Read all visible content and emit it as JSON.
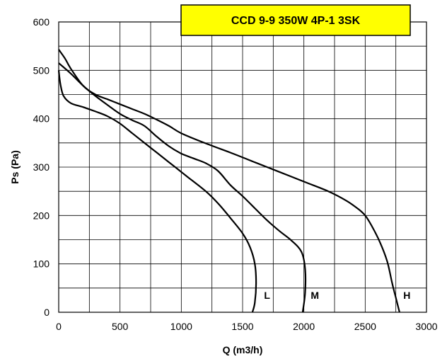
{
  "chart_data": {
    "type": "line",
    "title": "CCD 9-9 350W 4P-1 3SK",
    "title_box_color": "#ffff00",
    "xlabel": "Q (m3/h)",
    "ylabel": "Ps (Pa)",
    "xlim": [
      0,
      3000
    ],
    "ylim": [
      0,
      600
    ],
    "x_ticks": [
      0,
      500,
      1000,
      1500,
      2000,
      2500,
      3000
    ],
    "y_ticks": [
      0,
      100,
      200,
      300,
      400,
      500,
      600
    ],
    "x_tick_labels": [
      "0",
      "500",
      "1000",
      "1500",
      "2000",
      "2500",
      "3000"
    ],
    "y_tick_labels": [
      "0",
      "100",
      "200",
      "300",
      "400",
      "500",
      "600"
    ],
    "grid": true,
    "grid_x_step": 250,
    "grid_y_step": 50,
    "legend": "none",
    "series": [
      {
        "name": "L",
        "label_at": [
          1700,
          35
        ],
        "points": [
          [
            0,
            500
          ],
          [
            15,
            470
          ],
          [
            40,
            447
          ],
          [
            100,
            432
          ],
          [
            200,
            424
          ],
          [
            300,
            415
          ],
          [
            400,
            405
          ],
          [
            500,
            390
          ],
          [
            600,
            370
          ],
          [
            750,
            340
          ],
          [
            900,
            310
          ],
          [
            1050,
            280
          ],
          [
            1200,
            250
          ],
          [
            1300,
            225
          ],
          [
            1400,
            195
          ],
          [
            1500,
            163
          ],
          [
            1560,
            135
          ],
          [
            1600,
            100
          ],
          [
            1610,
            60
          ],
          [
            1600,
            20
          ],
          [
            1580,
            0
          ]
        ]
      },
      {
        "name": "M",
        "label_at": [
          2090,
          35
        ],
        "points": [
          [
            0,
            515
          ],
          [
            100,
            493
          ],
          [
            200,
            468
          ],
          [
            300,
            447
          ],
          [
            400,
            428
          ],
          [
            500,
            410
          ],
          [
            600,
            397
          ],
          [
            700,
            385
          ],
          [
            800,
            363
          ],
          [
            900,
            343
          ],
          [
            1000,
            328
          ],
          [
            1100,
            318
          ],
          [
            1200,
            308
          ],
          [
            1300,
            292
          ],
          [
            1400,
            263
          ],
          [
            1500,
            240
          ],
          [
            1600,
            215
          ],
          [
            1700,
            190
          ],
          [
            1800,
            168
          ],
          [
            1900,
            148
          ],
          [
            1980,
            125
          ],
          [
            2010,
            90
          ],
          [
            2010,
            40
          ],
          [
            1990,
            0
          ]
        ]
      },
      {
        "name": "H",
        "label_at": [
          2840,
          35
        ],
        "points": [
          [
            0,
            543
          ],
          [
            50,
            525
          ],
          [
            100,
            503
          ],
          [
            200,
            468
          ],
          [
            300,
            450
          ],
          [
            400,
            440
          ],
          [
            500,
            430
          ],
          [
            600,
            420
          ],
          [
            700,
            410
          ],
          [
            800,
            398
          ],
          [
            900,
            385
          ],
          [
            1000,
            370
          ],
          [
            1200,
            349
          ],
          [
            1400,
            330
          ],
          [
            1600,
            310
          ],
          [
            1800,
            290
          ],
          [
            2000,
            270
          ],
          [
            2200,
            250
          ],
          [
            2350,
            230
          ],
          [
            2450,
            212
          ],
          [
            2500,
            200
          ],
          [
            2550,
            180
          ],
          [
            2620,
            145
          ],
          [
            2680,
            105
          ],
          [
            2720,
            60
          ],
          [
            2750,
            30
          ],
          [
            2780,
            0
          ]
        ]
      }
    ]
  }
}
